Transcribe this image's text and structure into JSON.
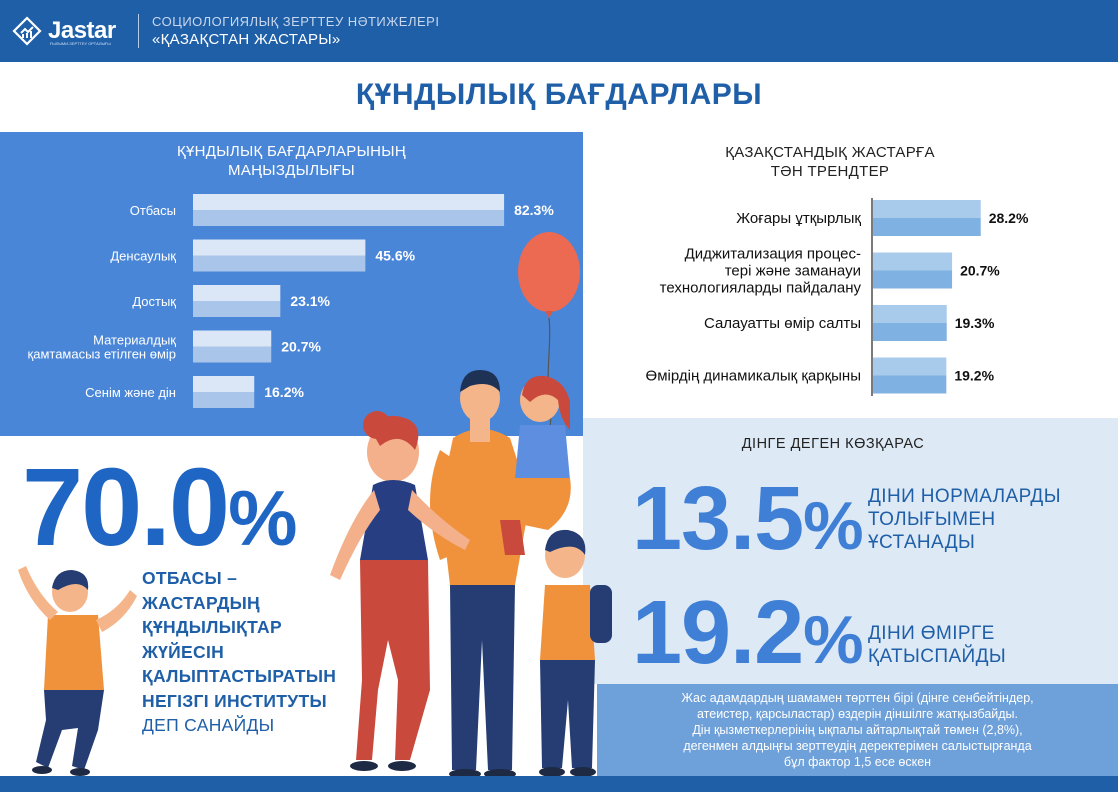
{
  "header": {
    "logo_text": "Jastar",
    "logo_subtext": "ҒЫЛЫМИ-ЗЕРТТЕУ ОРТАЛЫҒЫ",
    "line1": "СОЦИОЛОГИЯЛЫҚ ЗЕРТТЕУ НӘТИЖЕЛЕРІ",
    "line2": "«ҚАЗАҚСТАН ЖАСТАРЫ»"
  },
  "main_title": "ҚҰНДЫЛЫҚ БАҒДАРЛАРЫ",
  "values_panel": {
    "title_line1": "ҚҰНДЫЛЫҚ БАҒДАРЛАРЫНЫҢ",
    "title_line2": "МАҢЫЗДЫЛЫҒЫ"
  },
  "trends_panel": {
    "title_line1": "ҚАЗАҚСТАНДЫҚ ЖАСТАРҒА",
    "title_line2": "ТӘН ТРЕНДТЕР"
  },
  "religion": {
    "title": "ДІНГЕ ДЕГЕН КӨЗҚАРАС",
    "stat1_value": "13.5",
    "stat1_pct": "%",
    "stat1_label_line1": "ДІНИ НОРМАЛАРДЫ",
    "stat1_label_line2": "ТОЛЫҒЫМЕН",
    "stat1_label_line3": "ҰСТАНАДЫ",
    "stat2_value": "19.2",
    "stat2_pct": "%",
    "stat2_label_line1": "ДІНИ ӨМІРГЕ",
    "stat2_label_line2": "ҚАТЫСПАЙДЫ",
    "note_line1": "Жас адамдардың шамамен төрттен бірі (дінге сенбейтіндер,",
    "note_line2": "атеистер, қарсыластар) өздерін діншілге жатқызбайды.",
    "note_line3": "Дін қызметкерлерінің ықпалы айтарлықтай төмен (2,8%),",
    "note_line4": "дегенмен алдыңғы зерттеудің деректерімен салыстырғанда",
    "note_line5": "бұл фактор 1,5 есе өскен"
  },
  "family": {
    "big_value": "70.0",
    "big_pct": "%",
    "line1": "ОТБАСЫ –",
    "line2": "ЖАСТАРДЫҢ",
    "line3": "ҚҰНДЫЛЫҚТАР",
    "line4": "ЖҮЙЕСІН",
    "line5": "ҚАЛЫПТАСТЫРАТЫН",
    "line6": "НЕГІЗГІ ИНСТИТУТЫ",
    "line7": "ДЕП САНАЙДЫ"
  },
  "colors": {
    "brand_dark": "#1f5fa8",
    "panel_blue": "#4a86d8",
    "bar_light": "#dbe7f6",
    "bar_mid": "#a9c6ea",
    "trend_light": "#a8cbeb",
    "trend_dark": "#7fb2e2",
    "religion_bg": "#dde9f5",
    "note_bg": "#6ea0d9"
  },
  "chart_data": [
    {
      "type": "bar",
      "orientation": "horizontal",
      "title": "ҚҰНДЫЛЫҚ БАҒДАРЛАРЫНЫҢ МАҢЫЗДЫЛЫҒЫ",
      "categories": [
        [
          "Отбасы"
        ],
        [
          "Денсаулық"
        ],
        [
          "Достық"
        ],
        [
          "Материалдық",
          "қамтамасыз етілген өмір"
        ],
        [
          "Сенім және дін"
        ]
      ],
      "values": [
        82.3,
        45.6,
        23.1,
        20.7,
        16.2
      ],
      "value_labels": [
        "82.3%",
        "45.6%",
        "23.1%",
        "20.7%",
        "16.2%"
      ],
      "xlim": [
        0,
        100
      ],
      "grid": false
    },
    {
      "type": "bar",
      "orientation": "horizontal",
      "title": "ҚАЗАҚСТАНДЫҚ ЖАСТАРҒА ТӘН ТРЕНДТЕР",
      "categories": [
        [
          "Жоғары ұтқырлық"
        ],
        [
          "Диджитализация процес-",
          "тері және заманауи",
          "технологияларды пайдалану"
        ],
        [
          "Салауатты өмір салты"
        ],
        [
          "Өмірдің динамикалық қарқыны"
        ]
      ],
      "values": [
        28.2,
        20.7,
        19.3,
        19.2
      ],
      "value_labels": [
        "28.2%",
        "20.7%",
        "19.3%",
        "19.2%"
      ],
      "xlim": [
        0,
        100
      ],
      "grid": false
    }
  ]
}
